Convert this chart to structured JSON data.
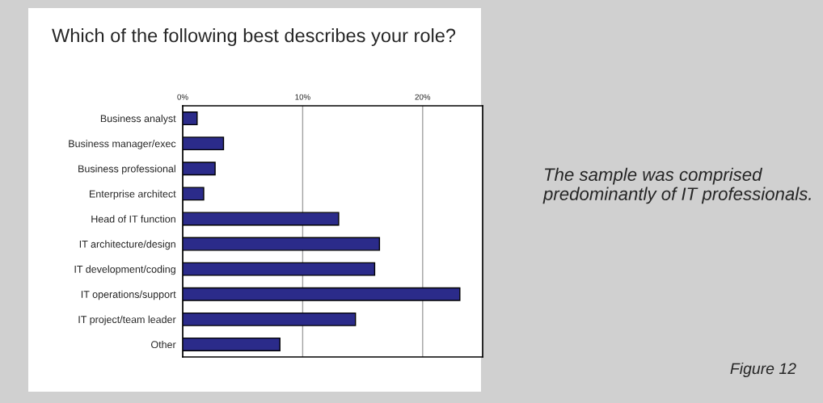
{
  "chart_data": {
    "type": "bar",
    "orientation": "horizontal",
    "title": "Which of the following best describes your role?",
    "categories": [
      "Business analyst",
      "Business manager/exec",
      "Business professional",
      "Enterprise architect",
      "Head of IT function",
      "IT architecture/design",
      "IT development/coding",
      "IT operations/support",
      "IT project/team leader",
      "Other"
    ],
    "values": [
      1.2,
      3.4,
      2.7,
      1.75,
      13.0,
      16.4,
      16.0,
      23.1,
      14.4,
      8.1
    ],
    "color": "#2b2b8a",
    "xlim": [
      0,
      25
    ],
    "xticks": [
      {
        "value": 0,
        "label": "0%"
      },
      {
        "value": 10,
        "label": "10%"
      },
      {
        "value": 20,
        "label": "20%"
      }
    ],
    "grid": "x",
    "legend": false,
    "annotations": [
      "The sample was comprised predominantly of IT professionals.",
      "Figure 12"
    ]
  }
}
